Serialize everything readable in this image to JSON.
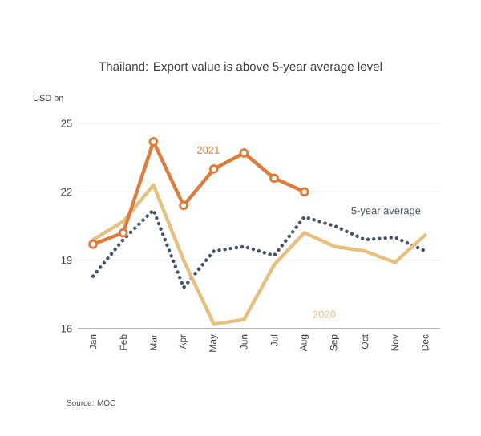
{
  "chart_data": {
    "type": "line",
    "title": "Thailand: Export value is above 5-year average level",
    "ylabel": "USD bn",
    "categories": [
      "Jan",
      "Feb",
      "Mar",
      "Apr",
      "May",
      "Jun",
      "Jul",
      "Aug",
      "Sep",
      "Oct",
      "Nov",
      "Dec"
    ],
    "series": [
      {
        "name": "2021",
        "color": "#e07b39",
        "marker": "circle",
        "line_style": "solid",
        "values": [
          19.7,
          20.2,
          24.2,
          21.4,
          23.0,
          23.7,
          22.6,
          22.0,
          null,
          null,
          null,
          null
        ]
      },
      {
        "name": "2020",
        "color": "#e8c07d",
        "marker": "none",
        "line_style": "solid",
        "values": [
          19.9,
          20.7,
          22.3,
          19.0,
          16.2,
          16.4,
          18.8,
          20.2,
          19.6,
          19.4,
          18.9,
          20.1
        ]
      },
      {
        "name": "5-year average",
        "color": "#44546a",
        "marker": "none",
        "line_style": "dotted",
        "values": [
          18.3,
          19.9,
          21.2,
          17.8,
          19.4,
          19.6,
          19.2,
          20.9,
          20.5,
          19.9,
          20.0,
          19.4
        ]
      }
    ],
    "ylim": [
      16,
      25
    ],
    "yticks": [
      16,
      19,
      22,
      25
    ],
    "grid": "y",
    "legend": false,
    "annotations": [
      "Source: MOC"
    ]
  }
}
